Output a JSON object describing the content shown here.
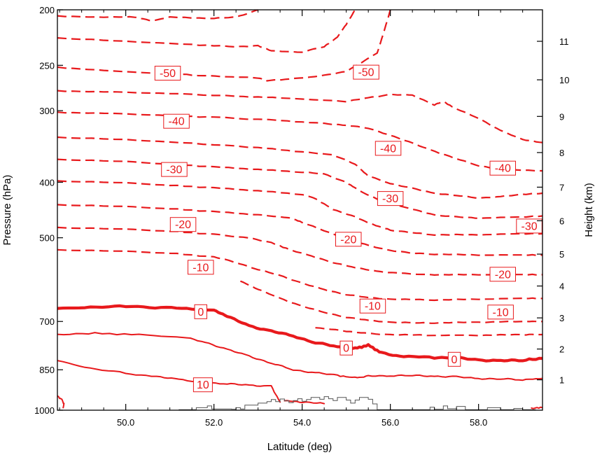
{
  "chart_data": {
    "type": "line",
    "subtype": "contour cross-section (dashed = negative, thick = 0, solid = positive)",
    "xlabel": "Latitude (deg)",
    "ylabel_left": "Pressure (hPa)",
    "ylabel_right": "Height (km)",
    "xlim": [
      48.45,
      59.45
    ],
    "ylim_pressure": [
      1000,
      200
    ],
    "y_scale": "log-pressure",
    "grid": false,
    "x_ticks": [
      {
        "value": 50,
        "label": "50.0"
      },
      {
        "value": 52,
        "label": "52.0"
      },
      {
        "value": 54,
        "label": "54.0"
      },
      {
        "value": 56,
        "label": "56.0"
      },
      {
        "value": 58,
        "label": "58.0"
      }
    ],
    "y_ticks_left": [
      {
        "value": 200,
        "label": "200"
      },
      {
        "value": 250,
        "label": "250"
      },
      {
        "value": 300,
        "label": "300"
      },
      {
        "value": 400,
        "label": "400"
      },
      {
        "value": 500,
        "label": "500"
      },
      {
        "value": 700,
        "label": "700"
      },
      {
        "value": 850,
        "label": "850"
      },
      {
        "value": 1000,
        "label": "1000"
      }
    ],
    "y_ticks_right": [
      {
        "value": 1,
        "label": "1",
        "p": 885
      },
      {
        "value": 2,
        "label": "2",
        "p": 782
      },
      {
        "value": 3,
        "label": "3",
        "p": 690
      },
      {
        "value": 4,
        "label": "4",
        "p": 607
      },
      {
        "value": 5,
        "label": "5",
        "p": 534
      },
      {
        "value": 6,
        "label": "6",
        "p": 467
      },
      {
        "value": 7,
        "label": "7",
        "p": 408
      },
      {
        "value": 8,
        "label": "8",
        "p": 355
      },
      {
        "value": 9,
        "label": "9",
        "p": 307
      },
      {
        "value": 10,
        "label": "10",
        "p": 265
      },
      {
        "value": 11,
        "label": "11",
        "p": 227
      }
    ],
    "contour_color": "#e8191c",
    "contours": [
      {
        "level": -50,
        "style": "dashed",
        "x": [
          48.45,
          49.5,
          50.8,
          51.5,
          52.3,
          53.0,
          53.2,
          53.7,
          54.4,
          55.0,
          55.7,
          56.0
        ],
        "p": [
          252,
          255,
          258,
          260,
          262,
          263,
          266,
          264,
          261,
          256,
          238,
          200
        ]
      },
      {
        "level": -50,
        "style": "dashed",
        "x": [
          48.45,
          50.0,
          51.5,
          52.5,
          53.0,
          53.3,
          54.0,
          54.5,
          54.8,
          55.0,
          55.2
        ],
        "p": [
          224,
          227,
          230,
          232,
          231,
          236,
          237,
          232,
          223,
          212,
          200
        ]
      },
      {
        "level": -50,
        "style": "dashed",
        "x": [
          48.45,
          49.5,
          50.2,
          50.6,
          51.0,
          52.0,
          52.5,
          53.0
        ],
        "p": [
          205,
          206,
          206,
          209,
          206,
          207,
          206,
          200
        ]
      },
      {
        "level": -40,
        "style": "dashed",
        "x": [
          48.45,
          49.5,
          51.0,
          52.5,
          53.5,
          55.0,
          55.5,
          56.0,
          56.5,
          57.0,
          57.2,
          57.5,
          58.0,
          58.5,
          59.0,
          59.45
        ],
        "p": [
          277,
          278,
          280,
          283,
          285,
          289,
          285,
          281,
          282,
          293,
          289,
          298,
          309,
          325,
          337,
          341
        ]
      },
      {
        "level": -40,
        "style": "dashed",
        "x": [
          48.45,
          49.5,
          51.0,
          52.0,
          53.5,
          54.5,
          55.0,
          55.5,
          56.0,
          56.5,
          57.0,
          57.5,
          58.0,
          58.5,
          59.45
        ],
        "p": [
          302,
          303,
          306,
          308,
          312,
          316,
          318,
          322,
          331,
          342,
          353,
          364,
          374,
          380,
          382
        ]
      },
      {
        "level": -40,
        "style": "dashed",
        "x": [
          48.45,
          50.0,
          51.5,
          53.0,
          54.0,
          54.7,
          55.2,
          55.5,
          56.0,
          56.5,
          57.0,
          57.5,
          58.0,
          58.5,
          59.0,
          59.45
        ],
        "p": [
          334,
          337,
          342,
          348,
          354,
          358,
          372,
          390,
          402,
          410,
          418,
          422,
          426,
          424,
          420,
          418
        ]
      },
      {
        "level": -30,
        "style": "dashed",
        "x": [
          48.45,
          50.0,
          51.0,
          52.0,
          53.0,
          54.0,
          54.5,
          55.0,
          55.3,
          55.8,
          56.5,
          57.0,
          57.5,
          58.0,
          59.0,
          59.45
        ],
        "p": [
          365,
          368,
          372,
          376,
          380,
          384,
          387,
          400,
          414,
          432,
          446,
          456,
          460,
          462,
          460,
          458
        ]
      },
      {
        "level": -30,
        "style": "dashed",
        "x": [
          48.45,
          50.0,
          51.0,
          52.0,
          53.0,
          54.0,
          54.3,
          54.7,
          55.2,
          55.6,
          56.0,
          56.5,
          57.0,
          58.0,
          59.0,
          59.45
        ],
        "p": [
          398,
          401,
          405,
          409,
          414,
          420,
          427,
          446,
          460,
          474,
          485,
          490,
          494,
          494,
          492,
          492
        ]
      },
      {
        "level": -20,
        "style": "dashed",
        "x": [
          48.45,
          50.0,
          51.0,
          52.0,
          53.0,
          53.7,
          54.0,
          54.5,
          55.0,
          55.5,
          56.0,
          56.5,
          57.0,
          58.0,
          59.0,
          59.45
        ],
        "p": [
          438,
          441,
          445,
          450,
          456,
          461,
          470,
          486,
          502,
          516,
          526,
          532,
          534,
          536,
          536,
          536
        ]
      },
      {
        "level": -20,
        "style": "dashed",
        "x": [
          48.45,
          50.0,
          51.0,
          52.0,
          52.8,
          53.3,
          53.7,
          54.2,
          54.7,
          55.2,
          55.7,
          56.2,
          57.0,
          58.0,
          59.0,
          59.45
        ],
        "p": [
          480,
          483,
          487,
          493,
          500,
          510,
          524,
          538,
          552,
          564,
          572,
          577,
          580,
          580,
          580,
          580
        ]
      },
      {
        "level": -10,
        "style": "dashed",
        "x": [
          48.45,
          50.0,
          51.0,
          52.0,
          52.5,
          53.0,
          53.5,
          54.0,
          54.5,
          55.0,
          55.5,
          56.0,
          57.0,
          58.0,
          59.0,
          59.45
        ],
        "p": [
          525,
          528,
          532,
          540,
          552,
          568,
          582,
          600,
          616,
          628,
          636,
          640,
          642,
          640,
          638,
          638
        ]
      },
      {
        "level": -10,
        "style": "dashed",
        "x": [
          52.6,
          53.0,
          53.5,
          54.0,
          54.5,
          55.0,
          55.5,
          56.0,
          56.5,
          57.0,
          58.0,
          59.0,
          59.45
        ],
        "p": [
          595,
          615,
          638,
          658,
          675,
          688,
          697,
          702,
          704,
          704,
          702,
          700,
          700
        ]
      },
      {
        "level": -10,
        "style": "dashed",
        "x": [
          54.3,
          55.0,
          55.5,
          56.0,
          57.0,
          58.0,
          59.0,
          59.45
        ],
        "p": [
          718,
          728,
          735,
          738,
          740,
          740,
          738,
          738
        ]
      },
      {
        "level": 0,
        "style": "thick",
        "x": [
          48.45,
          49.2,
          50.0,
          50.8,
          51.5,
          52.0,
          52.3,
          52.8,
          53.3,
          53.8,
          54.3,
          54.8,
          55.2,
          55.5,
          55.8,
          56.3,
          57.0,
          57.5,
          58.0,
          58.5,
          59.0,
          59.45
        ],
        "p": [
          665,
          661,
          659,
          662,
          665,
          668,
          686,
          712,
          728,
          742,
          762,
          775,
          780,
          770,
          794,
          807,
          809,
          810,
          817,
          820,
          818,
          812
        ]
      },
      {
        "level": 10,
        "style": "solid",
        "x": [
          48.45,
          49.3,
          50.3,
          51.3,
          51.8,
          52.3,
          52.8,
          53.3,
          53.8,
          54.3,
          54.8,
          55.2,
          55.5,
          56.0,
          56.5,
          57.0,
          57.5,
          58.0,
          58.5,
          59.0,
          59.45
        ],
        "p": [
          738,
          734,
          738,
          746,
          760,
          784,
          804,
          828,
          850,
          860,
          870,
          878,
          872,
          870,
          870,
          872,
          875,
          880,
          882,
          885,
          880
        ]
      },
      {
        "level": 10,
        "style": "solid",
        "x": [
          48.45,
          49.2,
          50.0,
          50.7,
          51.2,
          51.8,
          52.3,
          52.8,
          53.3,
          53.5
        ],
        "p": [
          820,
          845,
          862,
          874,
          884,
          894,
          900,
          904,
          908,
          968
        ]
      },
      {
        "level": 10,
        "style": "solid",
        "x": [
          53.6,
          54.0,
          54.5
        ],
        "p": [
          962,
          968,
          974
        ]
      },
      {
        "level": 10,
        "style": "solid",
        "x": [
          48.45,
          48.55,
          48.6,
          48.58
        ],
        "p": [
          945,
          957,
          975,
          990
        ]
      },
      {
        "level": 10,
        "style": "solid",
        "x": [
          59.2,
          59.45
        ],
        "p": [
          993,
          990
        ]
      }
    ],
    "contour_labels": [
      {
        "text": "-50",
        "x": 50.95,
        "p": 258
      },
      {
        "text": "-50",
        "x": 55.45,
        "p": 257
      },
      {
        "text": "-40",
        "x": 51.15,
        "p": 313
      },
      {
        "text": "-40",
        "x": 55.95,
        "p": 349
      },
      {
        "text": "-40",
        "x": 58.55,
        "p": 378
      },
      {
        "text": "-30",
        "x": 51.1,
        "p": 380
      },
      {
        "text": "-30",
        "x": 56.0,
        "p": 427
      },
      {
        "text": "-30",
        "x": 59.15,
        "p": 477
      },
      {
        "text": "-20",
        "x": 51.3,
        "p": 474
      },
      {
        "text": "-20",
        "x": 55.05,
        "p": 503
      },
      {
        "text": "-20",
        "x": 58.55,
        "p": 579
      },
      {
        "text": "-10",
        "x": 51.7,
        "p": 563
      },
      {
        "text": "-10",
        "x": 55.6,
        "p": 658
      },
      {
        "text": "-10",
        "x": 58.5,
        "p": 674
      },
      {
        "text": "0",
        "x": 51.7,
        "p": 673
      },
      {
        "text": "0",
        "x": 55.0,
        "p": 779
      },
      {
        "text": "0",
        "x": 57.45,
        "p": 815
      },
      {
        "text": "10",
        "x": 51.75,
        "p": 903
      }
    ],
    "terrain": {
      "x": [
        51.2,
        51.5,
        51.6,
        51.85,
        51.95,
        52.4,
        52.5,
        52.6,
        52.7,
        53.0,
        53.2,
        53.3,
        53.4,
        53.5,
        53.6,
        53.7,
        53.8,
        53.9,
        54.0,
        54.1,
        54.2,
        54.4,
        54.5,
        54.6,
        54.7,
        54.8,
        55.0,
        55.1,
        55.2,
        55.3,
        55.5,
        55.6,
        55.7,
        56.0,
        56.8,
        56.9,
        57.0,
        57.2,
        57.3,
        57.5,
        57.7,
        58.0,
        58.2,
        58.5,
        58.8,
        59.0,
        59.3
      ],
      "p": [
        998,
        998,
        990,
        983,
        995,
        996,
        990,
        995,
        980,
        972,
        966,
        958,
        966,
        956,
        963,
        970,
        962,
        955,
        965,
        958,
        950,
        957,
        947,
        955,
        962,
        950,
        960,
        972,
        960,
        950,
        957,
        975,
        998,
        998,
        998,
        988,
        996,
        983,
        994,
        985,
        998,
        998,
        990,
        998,
        993,
        998,
        998
      ]
    },
    "terrain_color": "#555555"
  }
}
